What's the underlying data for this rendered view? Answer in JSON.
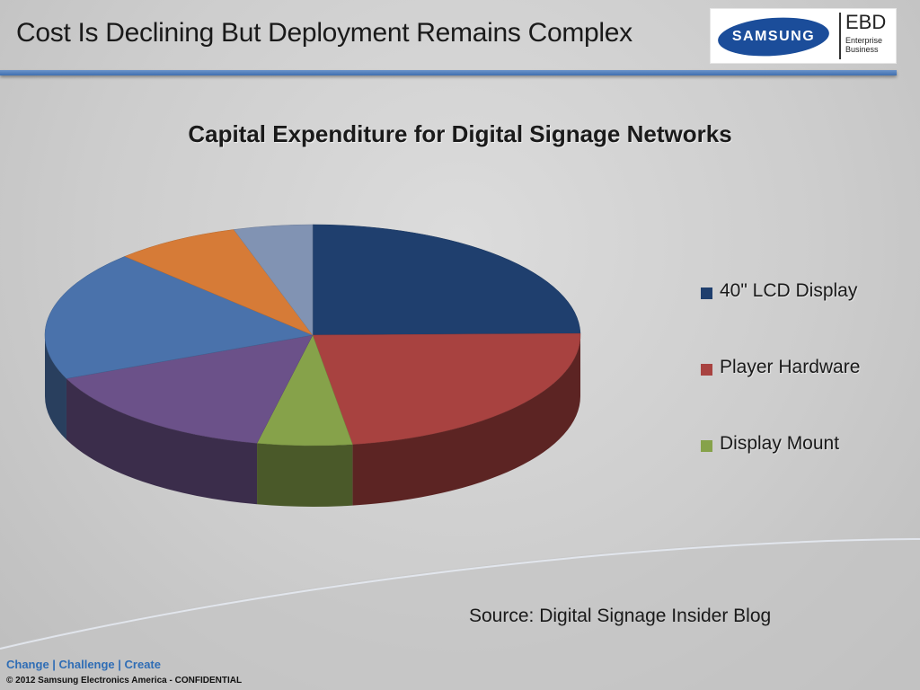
{
  "slide": {
    "title": "Cost Is Declining But Deployment Remains Complex",
    "source": "Source: Digital Signage Insider Blog",
    "tagline": "Change | Challenge | Create",
    "copyright": "© 2012 Samsung Electronics America - CONFIDENTIAL"
  },
  "logo": {
    "brand": "SAMSUNG",
    "division": "EBD",
    "division_line1": "Enterprise",
    "division_line2": "Business"
  },
  "chart_data": {
    "type": "pie",
    "title": "Capital Expenditure for Digital Signage Networks",
    "legend_position": "right",
    "categories": [
      "40\" LCD Display",
      "Player Hardware",
      "Display Mount",
      "",
      "",
      "",
      ""
    ],
    "values": [
      26,
      24,
      6,
      16,
      20,
      8,
      5
    ],
    "colors": [
      "#1f3f6e",
      "#a84240",
      "#86a24a",
      "#6b5189",
      "#4a72ab",
      "#d67b37",
      "#8193b3"
    ],
    "legend": [
      {
        "label": "40\" LCD Display",
        "color": "#1f3f6e"
      },
      {
        "label": "Player Hardware",
        "color": "#a84240"
      },
      {
        "label": "Display Mount",
        "color": "#86a24a"
      }
    ]
  }
}
